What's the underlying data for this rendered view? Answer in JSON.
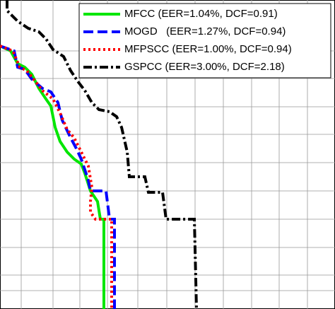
{
  "chart_data": {
    "type": "line",
    "xlim": [
      0,
      474
    ],
    "ylim": [
      437,
      0
    ],
    "xticks": [
      30,
      75,
      113,
      152,
      195,
      236,
      276,
      316,
      356,
      395,
      435
    ],
    "yticks": [
      72,
      111,
      151,
      190,
      230,
      270,
      310,
      350,
      389,
      411
    ],
    "grid": true,
    "legend": "upper right",
    "series": [
      {
        "name": "MFCC (EER=1.04%, DCF=0.91)",
        "color": "#00e600",
        "dash": "solid",
        "x": [
          0,
          15,
          25,
          35,
          45,
          55,
          65,
          72,
          78,
          85,
          95,
          105,
          115,
          120,
          128,
          138,
          142,
          147,
          147
        ],
        "values": [
          65,
          72,
          90,
          95,
          105,
          125,
          140,
          150,
          180,
          200,
          215,
          225,
          232,
          245,
          270,
          285,
          310,
          310,
          437
        ]
      },
      {
        "name": "MOGD   (EER=1.27%, DCF=0.94)",
        "color": "#0000ff",
        "dash": "dashed",
        "x": [
          0,
          20,
          25,
          35,
          45,
          60,
          72,
          82,
          88,
          100,
          108,
          115,
          120,
          125,
          128,
          150,
          155,
          162,
          162
        ],
        "values": [
          65,
          72,
          95,
          98,
          112,
          125,
          130,
          145,
          170,
          195,
          210,
          225,
          240,
          255,
          270,
          270,
          310,
          310,
          437
        ]
      },
      {
        "name": "MFPSCC (EER=1.00%, DCF=0.94)",
        "color": "#ff0000",
        "dash": "dotted",
        "x": [
          0,
          18,
          28,
          38,
          50,
          60,
          75,
          85,
          95,
          105,
          115,
          125,
          130,
          128,
          128,
          135,
          158,
          158
        ],
        "values": [
          65,
          72,
          95,
          100,
          115,
          128,
          140,
          160,
          183,
          195,
          215,
          235,
          265,
          285,
          300,
          310,
          310,
          437
        ]
      },
      {
        "name": "GSPCC (EER=3.00%, DCF=2.18)",
        "color": "#000000",
        "dash": "dashdot",
        "x": [
          10,
          10,
          25,
          40,
          55,
          65,
          75,
          90,
          100,
          110,
          120,
          130,
          140,
          155,
          165,
          172,
          180,
          183,
          205,
          210,
          230,
          235,
          275,
          278
        ],
        "values": [
          0,
          15,
          30,
          40,
          45,
          55,
          70,
          80,
          100,
          115,
          128,
          145,
          155,
          158,
          165,
          180,
          215,
          250,
          250,
          272,
          272,
          310,
          310,
          437
        ]
      }
    ]
  }
}
